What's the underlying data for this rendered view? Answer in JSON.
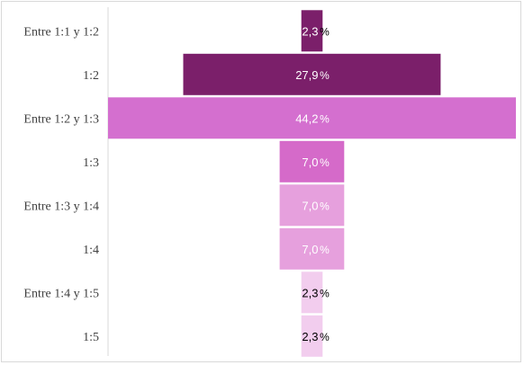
{
  "chart_data": {
    "type": "bar",
    "orientation": "horizontal",
    "style": "funnel (bars centered on the value axis)",
    "title": "",
    "xlabel": "",
    "ylabel": "",
    "categories": [
      "Entre  1:1 y 1:2",
      "1:2",
      "Entre 1:2 y 1:3",
      "1:3",
      "Entre 1:3 y 1:4",
      "1:4",
      "Entre 1:4 y 1:5",
      "1:5"
    ],
    "values": [
      2.3,
      27.9,
      44.2,
      7.0,
      7.0,
      7.0,
      2.3,
      2.3
    ],
    "value_labels": [
      "2,3",
      "27,9",
      "44,2",
      "7,0",
      "7,0",
      "7,0",
      "2,3",
      "2,3"
    ],
    "unit": "%",
    "xlim": [
      0,
      44.2
    ],
    "grid": false,
    "legend": "none",
    "bar_colors": [
      "#7b1f6a",
      "#7b1f6a",
      "#d46fcf",
      "#d56ac9",
      "#e6a0dd",
      "#e6a0dd",
      "#f2cdee",
      "#f2cdee"
    ],
    "label_colors": [
      "#ffffff",
      "#ffffff",
      "#ffffff",
      "#ffffff",
      "#ffffff",
      "#ffffff",
      "#000000",
      "#000000"
    ],
    "pct_colors": [
      "#000000",
      "#ffffff",
      "#ffffff",
      "#ffffff",
      "#ffffff",
      "#ffffff",
      "#000000",
      "#000000"
    ]
  }
}
